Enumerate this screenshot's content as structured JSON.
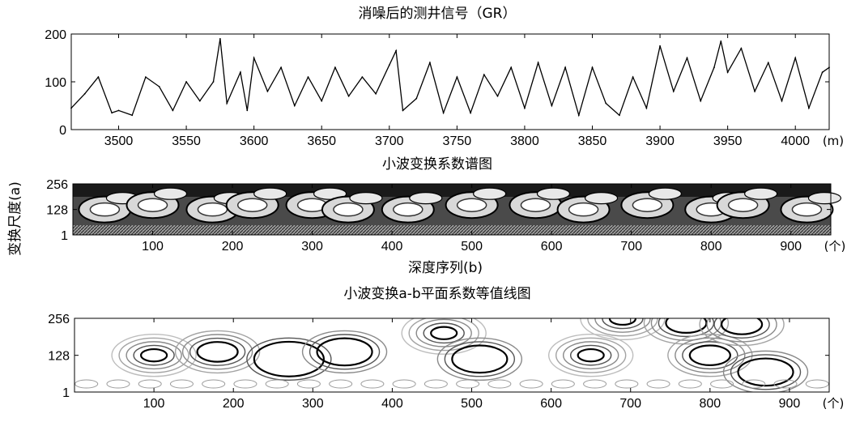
{
  "chart_data": [
    {
      "type": "line",
      "title": "消噪后的测井信号（GR）",
      "x_unit": "(m)",
      "xlim": [
        3465,
        4025
      ],
      "ylim": [
        0,
        200
      ],
      "x_ticks": [
        "3500",
        "3550",
        "3600",
        "3650",
        "3700",
        "3750",
        "3800",
        "3850",
        "3900",
        "3950",
        "4000"
      ],
      "x_tick_values": [
        3500,
        3550,
        3600,
        3650,
        3700,
        3750,
        3800,
        3850,
        3900,
        3950,
        4000
      ],
      "y_ticks": [
        "0",
        "100",
        "200"
      ],
      "y_tick_values": [
        0,
        100,
        200
      ],
      "series": [
        {
          "x": [
            3465,
            3475,
            3485,
            3495,
            3500,
            3510,
            3520,
            3530,
            3540,
            3550,
            3560,
            3570,
            3575,
            3580,
            3590,
            3595,
            3600,
            3610,
            3620,
            3630,
            3640,
            3650,
            3660,
            3670,
            3680,
            3690,
            3700,
            3705,
            3710,
            3720,
            3730,
            3740,
            3750,
            3760,
            3770,
            3780,
            3790,
            3800,
            3810,
            3820,
            3830,
            3840,
            3850,
            3860,
            3870,
            3880,
            3890,
            3900,
            3910,
            3920,
            3930,
            3940,
            3945,
            3950,
            3960,
            3970,
            3980,
            3990,
            4000,
            4010,
            4020,
            4025
          ],
          "y": [
            45,
            75,
            110,
            35,
            40,
            30,
            110,
            90,
            40,
            100,
            60,
            100,
            190,
            55,
            120,
            40,
            150,
            80,
            130,
            50,
            110,
            60,
            130,
            70,
            110,
            75,
            135,
            165,
            40,
            65,
            140,
            35,
            110,
            35,
            115,
            70,
            130,
            45,
            140,
            50,
            130,
            30,
            130,
            55,
            30,
            110,
            45,
            175,
            80,
            150,
            60,
            130,
            185,
            120,
            170,
            80,
            140,
            60,
            150,
            45,
            120,
            130
          ]
        }
      ]
    },
    {
      "type": "heatmap",
      "title": "小波变换系数谱图",
      "xlabel": "深度序列(b)",
      "ylabel": "变换尺度(a)",
      "x_unit": "(个)",
      "xlim": [
        0,
        950
      ],
      "ylim": [
        1,
        256
      ],
      "x_ticks": [
        "100",
        "200",
        "300",
        "400",
        "500",
        "600",
        "700",
        "800",
        "900"
      ],
      "x_tick_values": [
        100,
        200,
        300,
        400,
        500,
        600,
        700,
        800,
        900
      ],
      "y_ticks": [
        "1",
        "128",
        "256"
      ],
      "y_tick_values": [
        1,
        128,
        256
      ],
      "blob_centers_b": [
        40,
        100,
        175,
        225,
        300,
        345,
        420,
        500,
        580,
        640,
        720,
        800,
        840,
        920
      ],
      "blob_centers_a": [
        128,
        150,
        128,
        150,
        150,
        128,
        128,
        150,
        150,
        128,
        150,
        128,
        150,
        128
      ]
    },
    {
      "type": "heatmap",
      "title": "小波变换a-b平面系数等值线图",
      "x_unit": "(个)",
      "xlim": [
        0,
        950
      ],
      "ylim": [
        1,
        256
      ],
      "x_ticks": [
        "100",
        "200",
        "300",
        "400",
        "500",
        "600",
        "700",
        "800",
        "900"
      ],
      "x_tick_values": [
        100,
        200,
        300,
        400,
        500,
        600,
        700,
        800,
        900
      ],
      "y_ticks": [
        "1",
        "128",
        "256"
      ],
      "y_tick_values": [
        1,
        128,
        256
      ],
      "contour_centers": [
        {
          "b": 100,
          "a": 128,
          "strength": 1.0
        },
        {
          "b": 180,
          "a": 140,
          "strength": 0.7
        },
        {
          "b": 270,
          "a": 115,
          "strength": 0.45
        },
        {
          "b": 340,
          "a": 140,
          "strength": 0.6
        },
        {
          "b": 465,
          "a": 205,
          "strength": 1.0
        },
        {
          "b": 510,
          "a": 115,
          "strength": 0.6
        },
        {
          "b": 650,
          "a": 128,
          "strength": 0.9
        },
        {
          "b": 690,
          "a": 255,
          "strength": 1.0
        },
        {
          "b": 770,
          "a": 240,
          "strength": 0.8
        },
        {
          "b": 800,
          "a": 128,
          "strength": 0.7
        },
        {
          "b": 840,
          "a": 235,
          "strength": 0.8
        },
        {
          "b": 870,
          "a": 70,
          "strength": 0.5
        }
      ]
    }
  ]
}
